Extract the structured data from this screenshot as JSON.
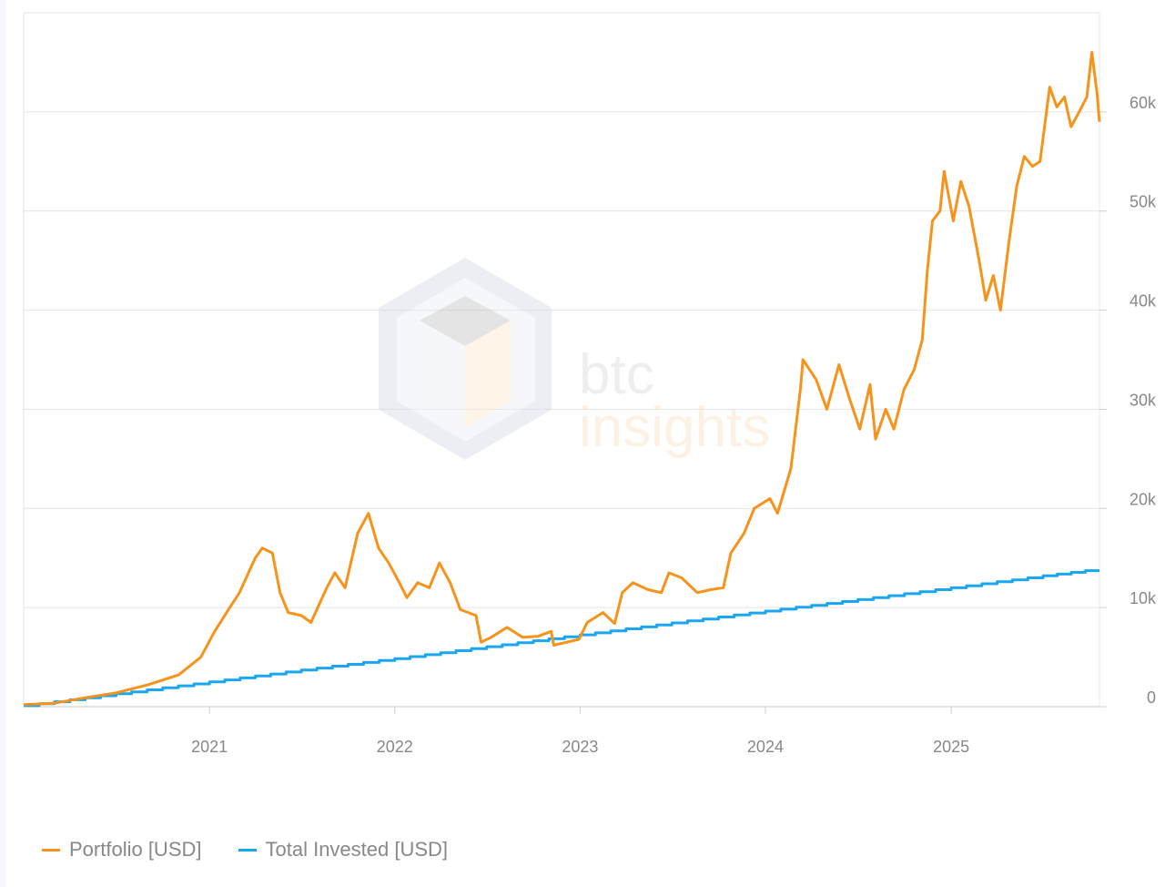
{
  "colors": {
    "portfolio": "#f7931a",
    "invested": "#1aa6f0",
    "grid": "#e4e4e4",
    "tick": "#888888"
  },
  "watermark": {
    "line1": "btc",
    "line2": "insights"
  },
  "legend": {
    "items": [
      {
        "label": "Portfolio [USD]",
        "color": "#f7931a"
      },
      {
        "label": "Total Invested [USD]",
        "color": "#1aa6f0"
      }
    ]
  },
  "chart_data": {
    "type": "line",
    "xlim": [
      "2020-01-01",
      "2025-10-20"
    ],
    "ylim": [
      0,
      70000
    ],
    "x_ticks": [
      {
        "date": "2021-01-01",
        "label": "2021"
      },
      {
        "date": "2022-01-01",
        "label": "2022"
      },
      {
        "date": "2023-01-01",
        "label": "2023"
      },
      {
        "date": "2024-01-01",
        "label": "2024"
      },
      {
        "date": "2025-01-01",
        "label": "2025"
      }
    ],
    "y_ticks": [
      {
        "value": 0,
        "label": "0"
      },
      {
        "value": 10000,
        "label": "10k"
      },
      {
        "value": 20000,
        "label": "20k"
      },
      {
        "value": 30000,
        "label": "30k"
      },
      {
        "value": 40000,
        "label": "40k"
      },
      {
        "value": 50000,
        "label": "50k"
      },
      {
        "value": 60000,
        "label": "60k"
      }
    ],
    "grid": true,
    "legend_position": "bottom-left",
    "series": [
      {
        "name": "Portfolio [USD]",
        "color": "#f7931a",
        "points": [
          [
            "2020-01-01",
            200
          ],
          [
            "2020-03-01",
            350
          ],
          [
            "2020-05-01",
            900
          ],
          [
            "2020-07-01",
            1400
          ],
          [
            "2020-09-01",
            2200
          ],
          [
            "2020-11-01",
            3200
          ],
          [
            "2020-12-15",
            5000
          ],
          [
            "2021-01-10",
            7500
          ],
          [
            "2021-02-10",
            10000
          ],
          [
            "2021-03-01",
            11500
          ],
          [
            "2021-04-01",
            15000
          ],
          [
            "2021-04-15",
            16000
          ],
          [
            "2021-05-05",
            15500
          ],
          [
            "2021-05-20",
            11500
          ],
          [
            "2021-06-05",
            9500
          ],
          [
            "2021-07-01",
            9200
          ],
          [
            "2021-07-20",
            8500
          ],
          [
            "2021-08-20",
            12000
          ],
          [
            "2021-09-05",
            13500
          ],
          [
            "2021-09-25",
            12000
          ],
          [
            "2021-10-20",
            17500
          ],
          [
            "2021-11-10",
            19500
          ],
          [
            "2021-11-30",
            16000
          ],
          [
            "2021-12-20",
            14500
          ],
          [
            "2022-01-10",
            12500
          ],
          [
            "2022-01-25",
            11000
          ],
          [
            "2022-02-15",
            12500
          ],
          [
            "2022-03-10",
            12000
          ],
          [
            "2022-03-30",
            14500
          ],
          [
            "2022-04-20",
            12500
          ],
          [
            "2022-05-10",
            9800
          ],
          [
            "2022-06-10",
            9200
          ],
          [
            "2022-06-20",
            6500
          ],
          [
            "2022-07-10",
            7000
          ],
          [
            "2022-08-10",
            8000
          ],
          [
            "2022-09-10",
            7000
          ],
          [
            "2022-10-10",
            7100
          ],
          [
            "2022-11-05",
            7600
          ],
          [
            "2022-11-10",
            6200
          ],
          [
            "2022-12-30",
            6800
          ],
          [
            "2023-01-15",
            8500
          ],
          [
            "2023-02-15",
            9500
          ],
          [
            "2023-03-10",
            8400
          ],
          [
            "2023-03-25",
            11500
          ],
          [
            "2023-04-15",
            12500
          ],
          [
            "2023-05-15",
            11800
          ],
          [
            "2023-06-10",
            11500
          ],
          [
            "2023-06-25",
            13500
          ],
          [
            "2023-07-20",
            13000
          ],
          [
            "2023-08-20",
            11500
          ],
          [
            "2023-09-15",
            11800
          ],
          [
            "2023-10-10",
            12000
          ],
          [
            "2023-10-25",
            15500
          ],
          [
            "2023-11-20",
            17500
          ],
          [
            "2023-12-10",
            20000
          ],
          [
            "2024-01-10",
            21000
          ],
          [
            "2024-01-25",
            19500
          ],
          [
            "2024-02-20",
            24000
          ],
          [
            "2024-03-10",
            32000
          ],
          [
            "2024-03-15",
            35000
          ],
          [
            "2024-04-10",
            33000
          ],
          [
            "2024-05-01",
            30000
          ],
          [
            "2024-05-25",
            34500
          ],
          [
            "2024-06-15",
            31000
          ],
          [
            "2024-07-05",
            28000
          ],
          [
            "2024-07-25",
            32500
          ],
          [
            "2024-08-05",
            27000
          ],
          [
            "2024-08-25",
            30000
          ],
          [
            "2024-09-10",
            28000
          ],
          [
            "2024-09-30",
            32000
          ],
          [
            "2024-10-20",
            34000
          ],
          [
            "2024-11-05",
            37000
          ],
          [
            "2024-11-15",
            44000
          ],
          [
            "2024-11-25",
            49000
          ],
          [
            "2024-12-10",
            50000
          ],
          [
            "2024-12-18",
            54000
          ],
          [
            "2025-01-05",
            49000
          ],
          [
            "2025-01-20",
            53000
          ],
          [
            "2025-02-05",
            50500
          ],
          [
            "2025-02-25",
            45000
          ],
          [
            "2025-03-10",
            41000
          ],
          [
            "2025-03-25",
            43500
          ],
          [
            "2025-04-08",
            40000
          ],
          [
            "2025-04-25",
            47000
          ],
          [
            "2025-05-10",
            52500
          ],
          [
            "2025-05-25",
            55500
          ],
          [
            "2025-06-10",
            54500
          ],
          [
            "2025-06-25",
            55000
          ],
          [
            "2025-07-14",
            62500
          ],
          [
            "2025-07-28",
            60500
          ],
          [
            "2025-08-12",
            61500
          ],
          [
            "2025-08-25",
            58500
          ],
          [
            "2025-09-10",
            60000
          ],
          [
            "2025-09-25",
            61500
          ],
          [
            "2025-10-05",
            66000
          ],
          [
            "2025-10-15",
            62000
          ],
          [
            "2025-10-20",
            59000
          ]
        ]
      },
      {
        "name": "Total Invested [USD]",
        "color": "#1aa6f0",
        "points": [
          [
            "2020-01-01",
            100
          ],
          [
            "2020-07-01",
            1300
          ],
          [
            "2021-01-01",
            2500
          ],
          [
            "2021-07-01",
            3700
          ],
          [
            "2022-01-01",
            4850
          ],
          [
            "2022-07-01",
            6050
          ],
          [
            "2023-01-01",
            7250
          ],
          [
            "2023-07-01",
            8450
          ],
          [
            "2024-01-01",
            9650
          ],
          [
            "2024-07-01",
            10800
          ],
          [
            "2025-01-01",
            12000
          ],
          [
            "2025-07-01",
            13200
          ],
          [
            "2025-10-20",
            13900
          ]
        ]
      }
    ]
  }
}
